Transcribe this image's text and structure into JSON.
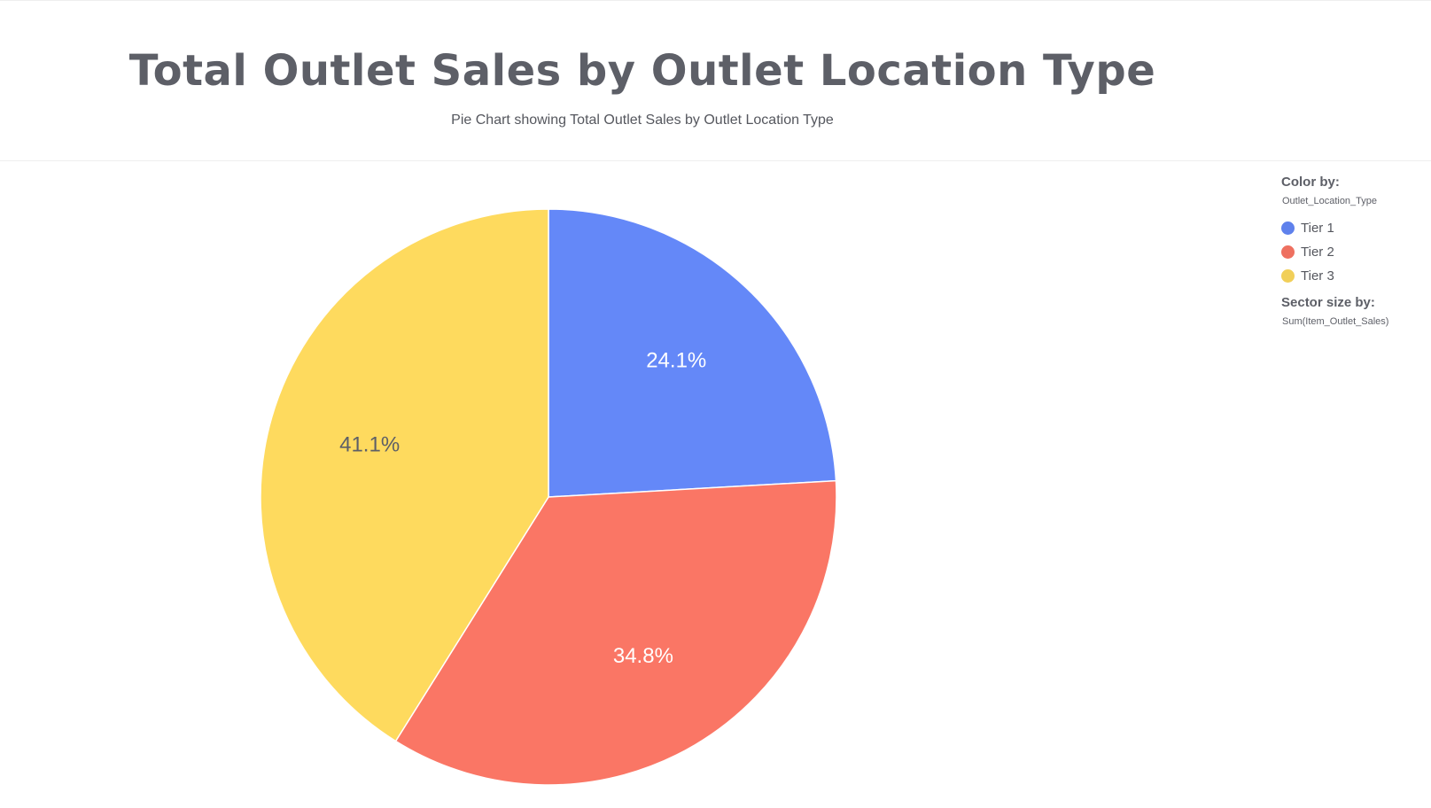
{
  "chart_data": {
    "type": "pie",
    "title": "Total Outlet Sales by Outlet Location Type",
    "subtitle": "Pie Chart showing Total Outlet Sales by Outlet Location Type",
    "categories": [
      "Tier 1",
      "Tier 2",
      "Tier 3"
    ],
    "values": [
      24.1,
      34.8,
      41.1
    ],
    "labels": [
      "24.1%",
      "34.8%",
      "41.1%"
    ],
    "colors": [
      "#6488f8",
      "#fa7665",
      "#feda5e"
    ],
    "label_colors": [
      "#ffffff",
      "#ffffff",
      "#5d5f67"
    ],
    "legend_placement": "top-right"
  },
  "legend": {
    "color_by_heading": "Color by:",
    "color_by_field": "Outlet_Location_Type",
    "size_by_heading": "Sector size by:",
    "size_by_field": "Sum(Item_Outlet_Sales)"
  }
}
